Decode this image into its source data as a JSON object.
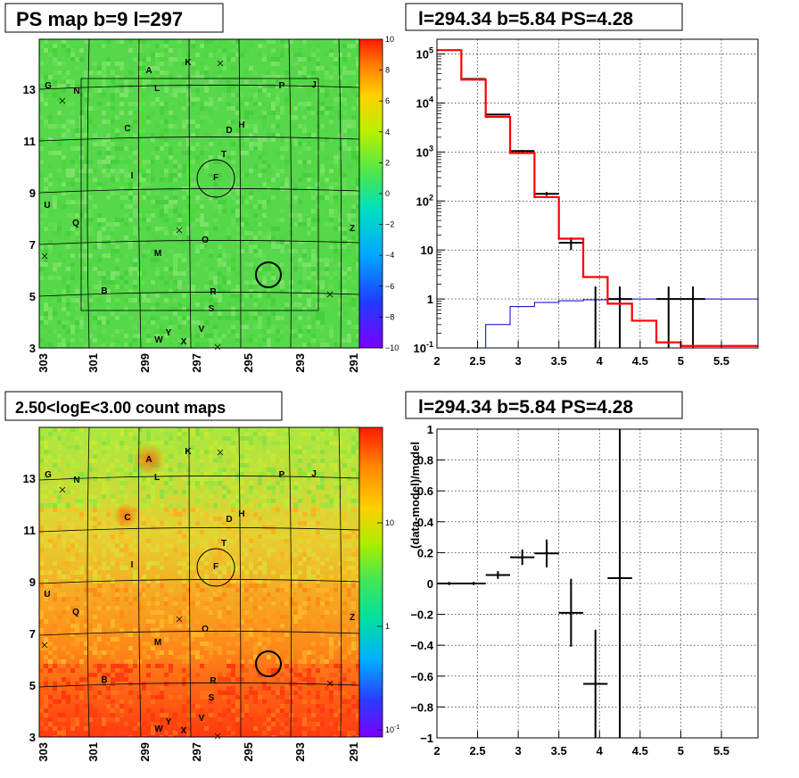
{
  "colors": {
    "model": "#ff0000",
    "data": "#000000",
    "background_model": "#0000cc"
  },
  "panels": {
    "top_left_title": "PS map b=9 l=297",
    "top_right_title": "l=294.34 b=5.84 PS=4.28",
    "bottom_left_title": "2.50<logE<3.00 count maps",
    "bottom_right_title": "l=294.34 b=5.84 PS=4.28"
  },
  "chart_data": [
    {
      "type": "heatmap",
      "title": "PS map b=9 l=297",
      "x_ticks": [
        "303",
        "301",
        "299",
        "297",
        "295",
        "293",
        "291"
      ],
      "y_ticks": [
        "13",
        "11",
        "9",
        "7",
        "5",
        "3"
      ],
      "colorbar_ticks": [
        "10",
        "8",
        "6",
        "4",
        "2",
        "0",
        "−2",
        "−4",
        "−6",
        "−8",
        "−10"
      ],
      "zlim": [
        -10,
        10
      ],
      "sources": [
        "A",
        "K",
        "G",
        "N",
        "L",
        "P",
        "J",
        "C",
        "D",
        "H",
        "T",
        "I",
        "F",
        "U",
        "Q",
        "O",
        "Z",
        "M",
        "B",
        "R",
        "S",
        "V",
        "Y",
        "W",
        "X"
      ]
    },
    {
      "type": "line",
      "title": "l=294.34 b=5.84 PS=4.28",
      "log_y": true,
      "grid": true,
      "xlim": [
        2,
        5.95
      ],
      "ylim": [
        0.1,
        200000
      ],
      "x_ticks": [
        "2",
        "2.5",
        "3",
        "3.5",
        "4",
        "4.5",
        "5",
        "5.5"
      ],
      "y_ticks": [
        "10^5",
        "10^4",
        "10^3",
        "10^2",
        "10",
        "1",
        "10^-1"
      ],
      "series": [
        {
          "role": "model",
          "bin_edges": [
            2,
            2.3,
            2.6,
            2.9,
            3.2,
            3.5,
            3.8,
            4.1,
            4.4,
            4.7,
            5.0,
            5.3,
            5.95
          ],
          "values": [
            120000,
            30000,
            5200,
            950,
            120,
            17,
            2.8,
            0.8,
            0.36,
            0.13,
            0.11,
            0.11
          ]
        },
        {
          "role": "background",
          "bin_edges": [
            2.6,
            2.9,
            3.2,
            3.5,
            3.8,
            4.1,
            4.4,
            4.7,
            5.0,
            5.3,
            5.95
          ],
          "values": [
            0.3,
            0.7,
            0.85,
            0.92,
            0.96,
            0.98,
            1.0,
            1.0,
            1.0,
            1.0
          ]
        },
        {
          "role": "data",
          "points": [
            {
              "x": 2.45,
              "y": 31000,
              "xerr": 0.15,
              "ylo": 30800,
              "yhi": 31200
            },
            {
              "x": 2.75,
              "y": 5800,
              "xerr": 0.15,
              "ylo": 5650,
              "yhi": 5950
            },
            {
              "x": 3.05,
              "y": 1050,
              "xerr": 0.15,
              "ylo": 1000,
              "yhi": 1100
            },
            {
              "x": 3.35,
              "y": 140,
              "xerr": 0.15,
              "ylo": 128,
              "yhi": 152
            },
            {
              "x": 3.65,
              "y": 14,
              "xerr": 0.15,
              "ylo": 10,
              "yhi": 18
            },
            {
              "x": 3.95,
              "y": 1,
              "xerr": 0,
              "ylo": 0.1,
              "yhi": 1.8
            },
            {
              "x": 4.25,
              "y": 1,
              "xerr": 0.15,
              "ylo": 0.1,
              "yhi": 1.8
            },
            {
              "x": 4.85,
              "y": 1,
              "xerr": 0.15,
              "ylo": 0.1,
              "yhi": 1.8
            },
            {
              "x": 5.15,
              "y": 1,
              "xerr": 0.15,
              "ylo": 0.1,
              "yhi": 1.8
            }
          ]
        }
      ]
    },
    {
      "type": "heatmap",
      "title": "2.50<logE<3.00 count maps",
      "x_ticks": [
        "303",
        "301",
        "299",
        "297",
        "295",
        "293",
        "291"
      ],
      "y_ticks": [
        "13",
        "11",
        "9",
        "7",
        "5",
        "3"
      ],
      "colorbar_ticks": [
        "10",
        "1",
        "10^-1"
      ],
      "log_z": true,
      "sources": [
        "A",
        "K",
        "G",
        "N",
        "L",
        "P",
        "J",
        "C",
        "D",
        "H",
        "T",
        "I",
        "F",
        "U",
        "Q",
        "O",
        "Z",
        "M",
        "B",
        "R",
        "S",
        "V",
        "Y",
        "W",
        "X"
      ]
    },
    {
      "type": "scatter",
      "title": "l=294.34 b=5.84 PS=4.28",
      "ylabel": "(data-model)/model",
      "grid": true,
      "xlim": [
        2,
        5.95
      ],
      "ylim": [
        -1,
        1
      ],
      "x_ticks": [
        "2",
        "2.5",
        "3",
        "3.5",
        "4",
        "4.5",
        "5",
        "5.5"
      ],
      "y_ticks": [
        "1",
        "0.8",
        "0.6",
        "0.4",
        "0.2",
        "0",
        "−0.2",
        "−0.4",
        "−0.6",
        "−0.8",
        "−1"
      ],
      "points": [
        {
          "x": 2.15,
          "y": 0.0,
          "xerr": 0.15,
          "yerr": 0.01
        },
        {
          "x": 2.45,
          "y": 0.0,
          "xerr": 0.15,
          "yerr": 0.01
        },
        {
          "x": 2.75,
          "y": 0.055,
          "xerr": 0.15,
          "yerr": 0.025
        },
        {
          "x": 3.05,
          "y": 0.17,
          "xerr": 0.15,
          "yerr": 0.05
        },
        {
          "x": 3.35,
          "y": 0.195,
          "xerr": 0.15,
          "yerr": 0.09
        },
        {
          "x": 3.65,
          "y": -0.19,
          "xerr": 0.15,
          "yerr": 0.22
        },
        {
          "x": 3.95,
          "y": -0.65,
          "xerr": 0.15,
          "yerr": 0.35
        },
        {
          "x": 4.25,
          "y": 0.035,
          "xerr": 0.15,
          "yerr": 1.2
        }
      ]
    }
  ]
}
